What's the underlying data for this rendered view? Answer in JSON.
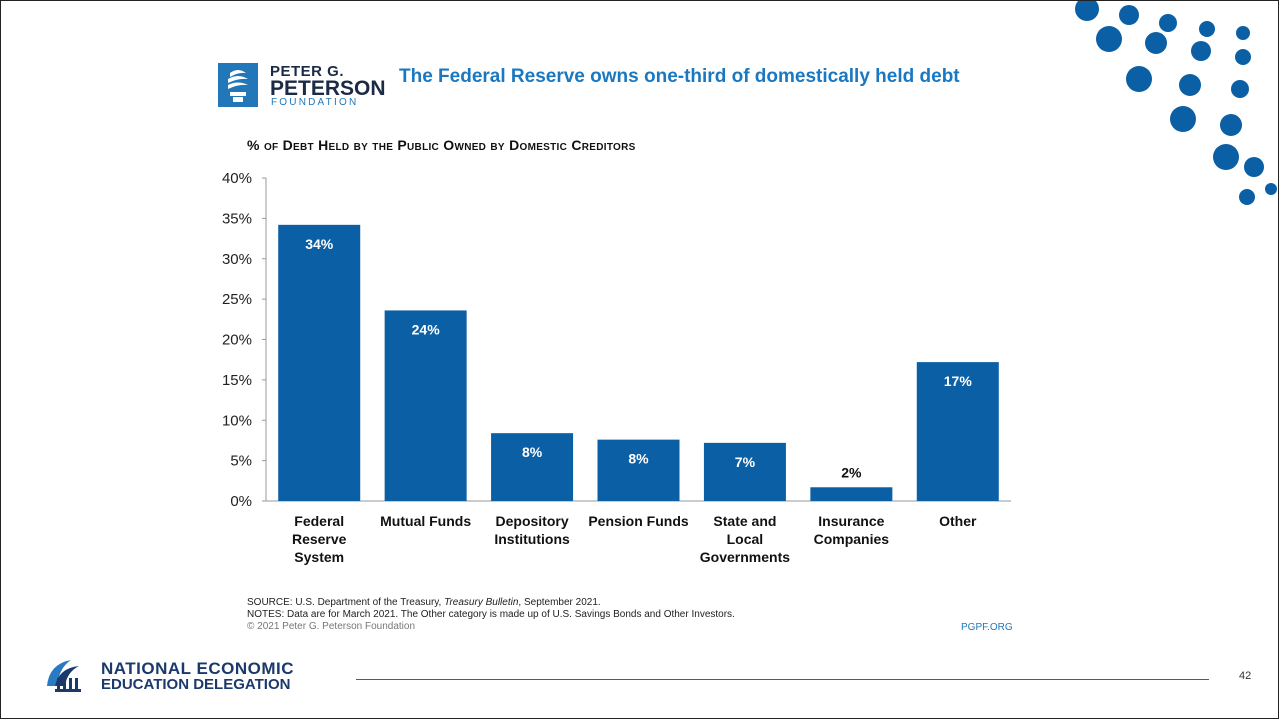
{
  "header": {
    "logo_line1": "PETER G.",
    "logo_line2": "PETERSON",
    "logo_line3": "FOUNDATION",
    "title": "The Federal Reserve owns one-third of domestically held debt"
  },
  "chart_data": {
    "type": "bar",
    "title": "% of Debt Held by the Public Owned by Domestic Creditors",
    "categories": [
      "Federal Reserve System",
      "Mutual Funds",
      "Depository Institutions",
      "Pension Funds",
      "State and Local Governments",
      "Insurance Companies",
      "Other"
    ],
    "category_lines": [
      [
        "Federal",
        "Reserve",
        "System"
      ],
      [
        "Mutual Funds"
      ],
      [
        "Depository",
        "Institutions"
      ],
      [
        "Pension Funds"
      ],
      [
        "State and",
        "Local",
        "Governments"
      ],
      [
        "Insurance",
        "Companies"
      ],
      [
        "Other"
      ]
    ],
    "values": [
      34.2,
      23.6,
      8.4,
      7.6,
      7.2,
      1.7,
      17.2
    ],
    "value_labels": [
      "34%",
      "24%",
      "8%",
      "8%",
      "7%",
      "2%",
      "17%"
    ],
    "ylim": [
      0,
      40
    ],
    "yticks": [
      0,
      5,
      10,
      15,
      20,
      25,
      30,
      35,
      40
    ],
    "ytick_labels": [
      "0%",
      "5%",
      "10%",
      "15%",
      "20%",
      "25%",
      "30%",
      "35%",
      "40%"
    ],
    "xlabel": "",
    "ylabel": "",
    "grid": false,
    "bar_color": "#0b5fa5"
  },
  "footer": {
    "source_prefix": "SOURCE: U.S. Department of the Treasury, ",
    "source_italic": "Treasury Bulletin",
    "source_suffix": ", September 2021.",
    "notes": "NOTES: Data are for March 2021. The Other category is made up of U.S. Savings Bonds and Other Investors.",
    "copyright": "© 2021 Peter G. Peterson Foundation",
    "site": "PGPF.ORG",
    "org_line1": "NATIONAL ECONOMIC",
    "org_line2": "EDUCATION DELEGATION",
    "slide_number": "42"
  },
  "colors": {
    "accent": "#1a78c2",
    "dots": "#0b5fa5",
    "navy": "#1b3a6b"
  }
}
